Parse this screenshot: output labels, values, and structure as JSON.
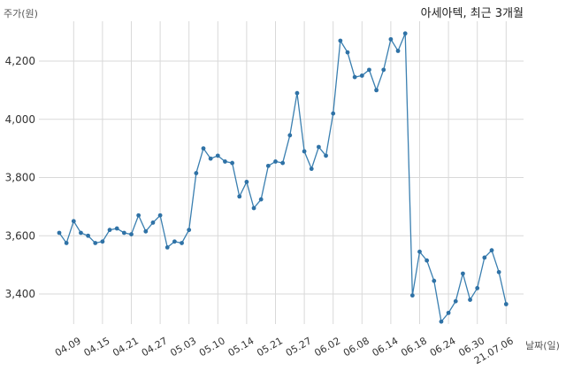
{
  "chart_data": {
    "type": "line",
    "title": "아세아텍, 최근 3개월",
    "ylabel": "주가(원)",
    "xlabel": "날짜(일)",
    "ylim": [
      3260,
      4340
    ],
    "yticks": [
      3400,
      3600,
      3800,
      4000,
      4200
    ],
    "ytick_labels": [
      "3,400",
      "3,600",
      "3,800",
      "4,000",
      "4,200"
    ],
    "xticks": [
      {
        "i": 2,
        "label": "04.09"
      },
      {
        "i": 6,
        "label": "04.15"
      },
      {
        "i": 10,
        "label": "04.21"
      },
      {
        "i": 14,
        "label": "04.27"
      },
      {
        "i": 18,
        "label": "05.03"
      },
      {
        "i": 22,
        "label": "05.10"
      },
      {
        "i": 26,
        "label": "05.14"
      },
      {
        "i": 30,
        "label": "05.21"
      },
      {
        "i": 34,
        "label": "05.27"
      },
      {
        "i": 38,
        "label": "06.02"
      },
      {
        "i": 42,
        "label": "06.08"
      },
      {
        "i": 46,
        "label": "06.14"
      },
      {
        "i": 50,
        "label": "06.18"
      },
      {
        "i": 54,
        "label": "06.24"
      },
      {
        "i": 58,
        "label": "06.30"
      },
      {
        "i": 62,
        "label": "21.07.06"
      }
    ],
    "grid": true,
    "series": [
      {
        "values": [
          3610,
          3575,
          3650,
          3610,
          3600,
          3575,
          3580,
          3620,
          3625,
          3610,
          3605,
          3670,
          3615,
          3645,
          3670,
          3560,
          3580,
          3575,
          3620,
          3815,
          3900,
          3865,
          3875,
          3855,
          3850,
          3735,
          3785,
          3695,
          3725,
          3840,
          3855,
          3850,
          3945,
          4090,
          3890,
          3830,
          3905,
          3875,
          4020,
          4270,
          4230,
          4145,
          4150,
          4170,
          4100,
          4170,
          4275,
          4235,
          4295,
          3395,
          3545,
          3515,
          3445,
          3305,
          3335,
          3375,
          3470,
          3380,
          3420,
          3525,
          3550,
          3475,
          3365
        ]
      }
    ]
  }
}
